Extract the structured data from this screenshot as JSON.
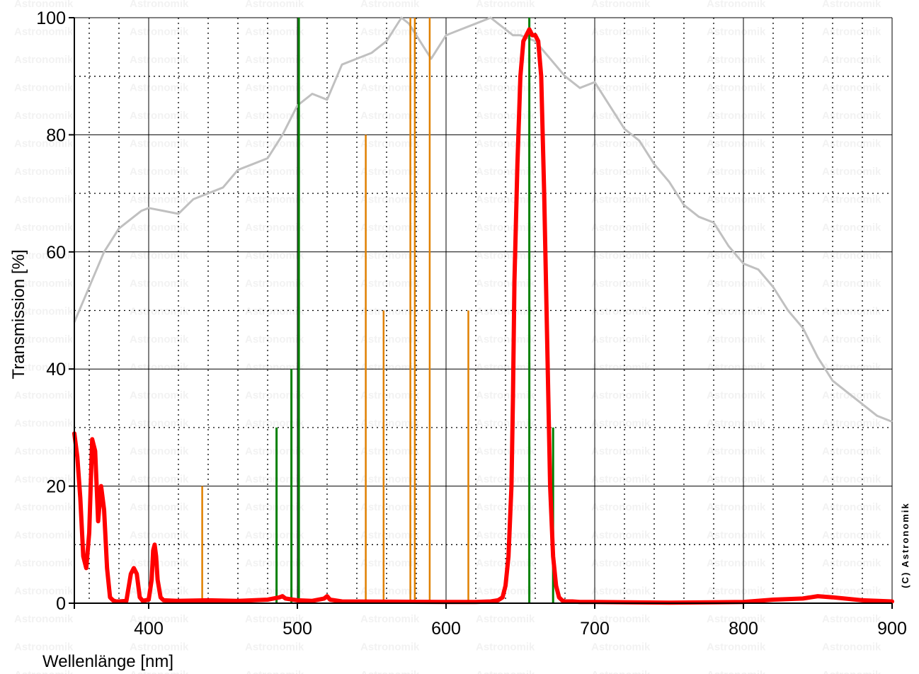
{
  "chart_data": {
    "type": "line",
    "xlabel": "Wellenlänge [nm]",
    "ylabel": "Transmission [%]",
    "xlim": [
      350,
      900
    ],
    "ylim": [
      0,
      100
    ],
    "x_ticks": [
      400,
      500,
      600,
      700,
      800,
      900
    ],
    "x_tick_labels": [
      "400",
      "500",
      "600",
      "700",
      "800",
      "900"
    ],
    "y_ticks": [
      0,
      20,
      40,
      60,
      80,
      100
    ],
    "y_tick_labels": [
      "0",
      "20",
      "40",
      "60",
      "80",
      "100"
    ],
    "grid": true,
    "watermark": "Astronomik",
    "credit": "(C) Astronomik",
    "colors": {
      "filter": "#ff0000",
      "sensor": "#c0c0c0",
      "green_lines": "#008000",
      "orange_lines": "#e08000",
      "grid_major": "#000000",
      "grid_minor": "#000000"
    },
    "series": [
      {
        "key": "sensor",
        "x": [
          350,
          355,
          360,
          365,
          370,
          375,
          380,
          385,
          390,
          395,
          400,
          410,
          420,
          430,
          440,
          450,
          460,
          470,
          480,
          490,
          500,
          510,
          520,
          530,
          540,
          550,
          560,
          565,
          570,
          575,
          580,
          585,
          590,
          600,
          610,
          620,
          630,
          635,
          640,
          645,
          650,
          660,
          670,
          680,
          690,
          700,
          710,
          720,
          730,
          740,
          750,
          760,
          770,
          780,
          790,
          800,
          810,
          820,
          830,
          840,
          850,
          860,
          870,
          880,
          890,
          900
        ],
        "y": [
          48,
          51,
          54,
          57,
          60,
          62,
          64,
          65,
          66,
          67,
          67.5,
          67,
          66.5,
          69,
          70,
          71,
          74,
          75,
          76,
          80,
          85,
          87,
          86,
          92,
          93,
          94,
          96,
          98,
          100,
          99,
          97,
          95,
          93,
          97,
          98,
          99,
          100,
          99,
          98,
          97,
          97,
          96,
          93,
          90,
          88,
          89,
          85,
          81,
          79,
          75,
          72,
          68,
          66,
          65,
          61,
          58,
          57,
          54,
          50,
          47,
          42,
          38,
          36,
          34,
          32,
          31
        ],
        "line_color": "#c0c0c0"
      },
      {
        "key": "filter",
        "x": [
          350,
          352,
          354,
          356,
          358,
          360,
          362,
          364,
          366,
          368,
          370,
          372,
          374,
          376,
          378,
          380,
          385,
          388,
          390,
          392,
          394,
          396,
          400,
          402,
          403,
          404,
          405,
          406,
          408,
          410,
          420,
          440,
          460,
          480,
          488,
          490,
          492,
          500,
          510,
          518,
          520,
          522,
          530,
          600,
          620,
          630,
          635,
          638,
          640,
          642,
          644,
          645,
          646,
          648,
          650,
          652,
          654,
          656,
          658,
          660,
          662,
          664,
          666,
          668,
          670,
          672,
          674,
          676,
          678,
          680,
          685,
          690,
          700,
          750,
          800,
          820,
          840,
          850,
          860,
          880,
          900
        ],
        "y": [
          29,
          25,
          18,
          8,
          6,
          12,
          28,
          26,
          14,
          20,
          16,
          6,
          1,
          0.5,
          0.3,
          0.3,
          0.4,
          5,
          6,
          5,
          1,
          0.4,
          0.6,
          4,
          9,
          10,
          8,
          4,
          1,
          0.5,
          0.4,
          0.5,
          0.4,
          0.6,
          1,
          1.2,
          0.8,
          0.5,
          0.4,
          0.8,
          1.2,
          0.6,
          0.3,
          0.2,
          0.2,
          0.3,
          0.5,
          1,
          3,
          8,
          20,
          35,
          55,
          75,
          90,
          96,
          97,
          98,
          97,
          97,
          96,
          90,
          70,
          45,
          20,
          8,
          3,
          1,
          0.5,
          0.3,
          0.3,
          0.2,
          0.2,
          0.1,
          0.2,
          0.6,
          0.8,
          1.2,
          1,
          0.5,
          0.3
        ],
        "line_color": "#ff0000"
      }
    ],
    "emission_lines_green": [
      {
        "x": 486,
        "y": 30
      },
      {
        "x": 496,
        "y": 40
      },
      {
        "x": 501,
        "y": 100
      },
      {
        "x": 656,
        "y": 100
      },
      {
        "x": 672,
        "y": 30
      }
    ],
    "emission_lines_orange": [
      {
        "x": 436,
        "y": 20
      },
      {
        "x": 546,
        "y": 80
      },
      {
        "x": 558,
        "y": 50
      },
      {
        "x": 576,
        "y": 100
      },
      {
        "x": 579,
        "y": 100
      },
      {
        "x": 589,
        "y": 100
      },
      {
        "x": 615,
        "y": 50
      }
    ]
  }
}
